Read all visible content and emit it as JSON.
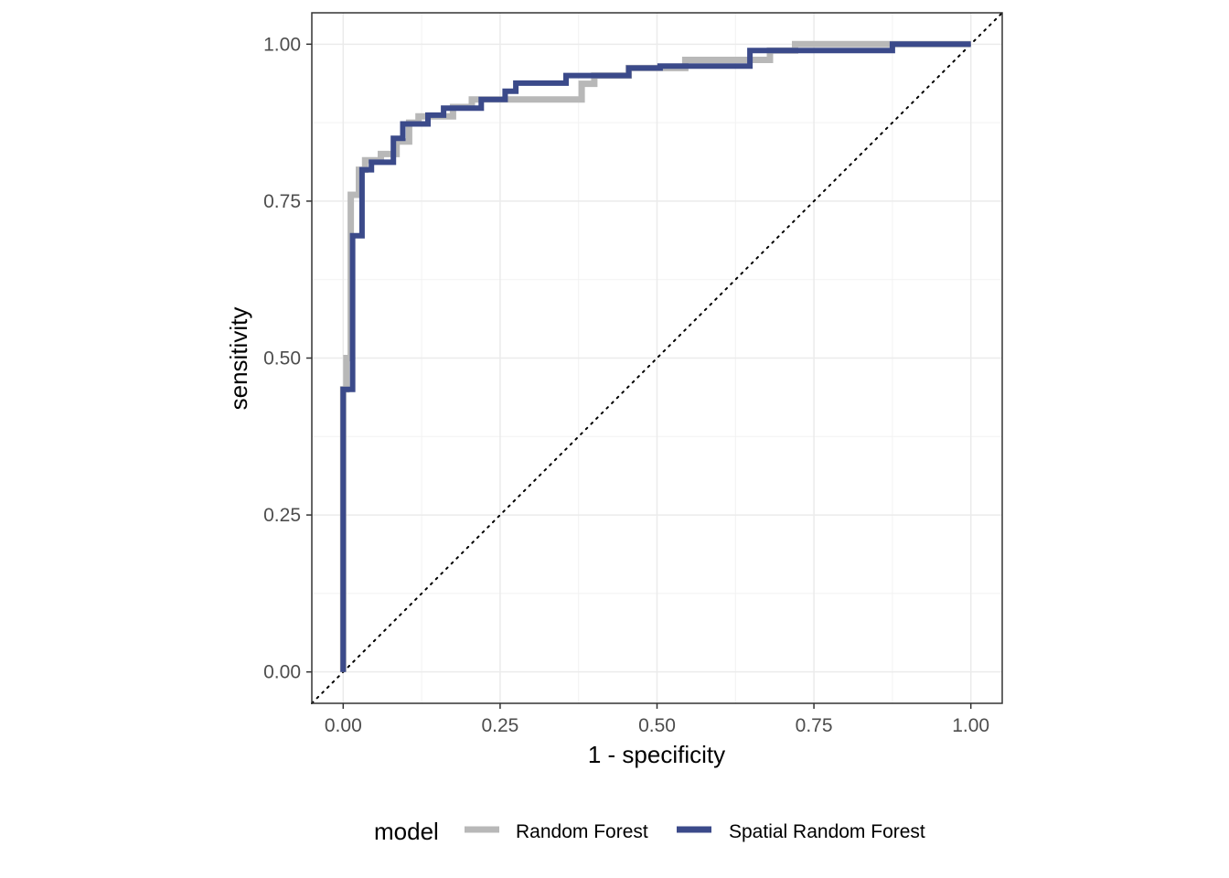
{
  "chart_data": {
    "type": "line",
    "title": "",
    "xlabel": "1 - specificity",
    "ylabel": "sensitivity",
    "xlim": [
      -0.05,
      1.05
    ],
    "ylim": [
      -0.05,
      1.05
    ],
    "x_ticks": [
      0,
      0.25,
      0.5,
      0.75,
      1
    ],
    "y_ticks": [
      0,
      0.25,
      0.5,
      0.75,
      1
    ],
    "x_tick_labels": [
      "0.00",
      "0.25",
      "0.50",
      "0.75",
      "1.00"
    ],
    "y_tick_labels": [
      "0.00",
      "0.25",
      "0.50",
      "0.75",
      "1.00"
    ],
    "grid": true,
    "reference_line": {
      "x": [
        0,
        1
      ],
      "y": [
        0,
        1
      ],
      "style": "dotted"
    },
    "legend": {
      "title": "model",
      "position": "bottom"
    },
    "series": [
      {
        "name": "Random Forest",
        "color": "#b8b8b8",
        "x": [
          0,
          0,
          0.005,
          0.005,
          0.012,
          0.012,
          0.025,
          0.025,
          0.035,
          0.035,
          0.06,
          0.06,
          0.085,
          0.085,
          0.105,
          0.105,
          0.12,
          0.12,
          0.175,
          0.175,
          0.205,
          0.205,
          0.38,
          0.38,
          0.4,
          0.4,
          0.455,
          0.455,
          0.545,
          0.545,
          0.68,
          0.68,
          0.72,
          0.72,
          0.88,
          0.88,
          0.89,
          0.89,
          1
        ],
        "y": [
          0,
          0.45,
          0.45,
          0.5,
          0.5,
          0.76,
          0.76,
          0.8,
          0.8,
          0.815,
          0.815,
          0.825,
          0.825,
          0.845,
          0.845,
          0.875,
          0.875,
          0.885,
          0.885,
          0.9,
          0.9,
          0.912,
          0.912,
          0.937,
          0.937,
          0.95,
          0.95,
          0.962,
          0.962,
          0.975,
          0.975,
          0.99,
          0.99,
          1,
          1,
          1,
          1,
          1,
          1
        ]
      },
      {
        "name": "Spatial Random Forest",
        "color": "#3b4a8a",
        "x": [
          0,
          0,
          0.015,
          0.015,
          0.03,
          0.03,
          0.045,
          0.045,
          0.08,
          0.08,
          0.095,
          0.095,
          0.135,
          0.135,
          0.16,
          0.16,
          0.22,
          0.22,
          0.258,
          0.258,
          0.275,
          0.275,
          0.355,
          0.355,
          0.455,
          0.455,
          0.505,
          0.505,
          0.648,
          0.648,
          0.875,
          0.875,
          0.89,
          0.89,
          1
        ],
        "y": [
          0,
          0.45,
          0.45,
          0.695,
          0.695,
          0.8,
          0.8,
          0.812,
          0.812,
          0.85,
          0.85,
          0.873,
          0.873,
          0.887,
          0.887,
          0.898,
          0.898,
          0.912,
          0.912,
          0.925,
          0.925,
          0.938,
          0.938,
          0.95,
          0.95,
          0.962,
          0.962,
          0.965,
          0.965,
          0.99,
          0.99,
          1,
          1,
          1,
          1
        ]
      }
    ]
  }
}
